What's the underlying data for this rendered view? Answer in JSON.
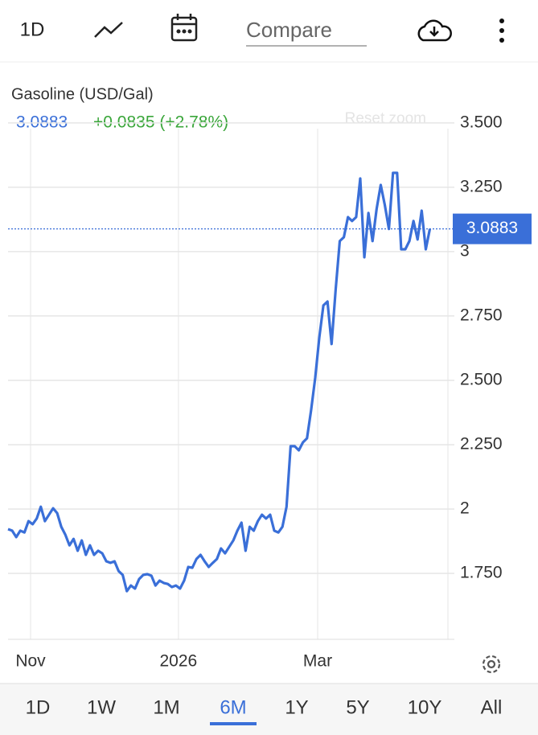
{
  "toolbar": {
    "interval": "1D",
    "compare": "Compare"
  },
  "chart_data": {
    "type": "line",
    "title": "Gasoline (USD/Gal)",
    "change": "+0.0835 (+2.78%)",
    "reset_zoom": "Reset zoom",
    "series": [
      {
        "name": "Gasoline",
        "color": "#3a6fd8",
        "values": [
          1.922,
          1.916,
          1.891,
          1.916,
          1.909,
          1.953,
          1.941,
          1.963,
          2.009,
          1.953,
          1.978,
          2.003,
          1.984,
          1.931,
          1.9,
          1.859,
          1.884,
          1.838,
          1.878,
          1.822,
          1.859,
          1.822,
          1.838,
          1.828,
          1.797,
          1.791,
          1.797,
          1.759,
          1.744,
          1.681,
          1.703,
          1.691,
          1.728,
          1.744,
          1.747,
          1.741,
          1.703,
          1.722,
          1.713,
          1.709,
          1.697,
          1.703,
          1.691,
          1.722,
          1.775,
          1.772,
          1.806,
          1.822,
          1.797,
          1.775,
          1.791,
          1.806,
          1.847,
          1.828,
          1.853,
          1.878,
          1.916,
          1.947,
          1.838,
          1.931,
          1.916,
          1.953,
          1.978,
          1.963,
          1.978,
          1.916,
          1.909,
          1.931,
          2.009,
          2.244,
          2.244,
          2.228,
          2.259,
          2.275,
          2.384,
          2.509,
          2.666,
          2.791,
          2.806,
          2.641,
          2.853,
          3.041,
          3.056,
          3.134,
          3.119,
          3.134,
          3.284,
          2.978,
          3.15,
          3.041,
          3.166,
          3.259,
          3.181,
          3.088,
          3.306,
          3.306,
          3.009,
          3.009,
          3.041,
          3.119,
          3.047,
          3.159,
          3.009,
          3.0883
        ]
      }
    ],
    "xlim": [
      0,
      108
    ],
    "xticks": [
      {
        "value": 5.5,
        "label": "Nov"
      },
      {
        "value": 41.6,
        "label": "2026"
      },
      {
        "value": 75.6,
        "label": "Mar"
      }
    ],
    "ylim": [
      1.494,
      3.64
    ],
    "yticks": [
      {
        "value": 3.5,
        "label": "3.500"
      },
      {
        "value": 3.25,
        "label": "3.250"
      },
      3,
      {
        "value": 2.75,
        "label": "2.750"
      },
      {
        "value": 2.5,
        "label": "2.500"
      },
      {
        "value": 2.25,
        "label": "2.250"
      },
      2,
      {
        "value": 1.75,
        "label": "1.750"
      }
    ],
    "grid": true
  },
  "ranges": {
    "items": [
      "1D",
      "1W",
      "1M",
      "6M",
      "1Y",
      "5Y",
      "10Y",
      "All"
    ],
    "active": 3
  }
}
